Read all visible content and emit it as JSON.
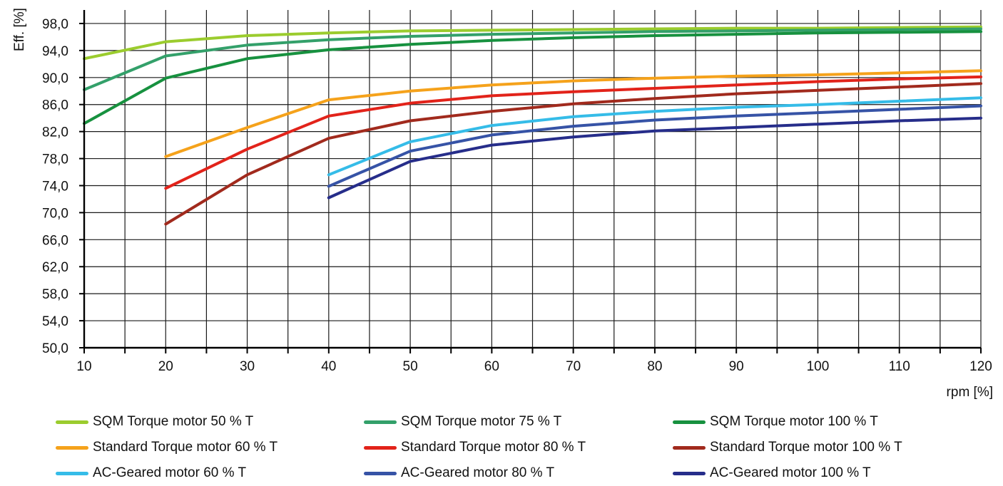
{
  "chart_data": {
    "type": "line",
    "title": "",
    "xlabel": "rpm [%]",
    "ylabel": "Eff. [%]",
    "xlim": [
      10,
      120
    ],
    "ylim": [
      50,
      100
    ],
    "xticks": [
      10,
      20,
      30,
      40,
      50,
      60,
      70,
      80,
      90,
      100,
      110,
      120
    ],
    "xtick_labels": [
      "10",
      "20",
      "30",
      "40",
      "50",
      "60",
      "70",
      "80",
      "90",
      "100",
      "110",
      "120"
    ],
    "yticks": [
      50,
      54,
      58,
      62,
      66,
      70,
      74,
      78,
      82,
      86,
      90,
      94,
      98
    ],
    "ytick_labels": [
      "50,0",
      "54,0",
      "58,0",
      "62,0",
      "66,0",
      "70,0",
      "74,0",
      "78,0",
      "82,0",
      "86,0",
      "90,0",
      "94,0",
      "98,0"
    ],
    "grid": true,
    "legend_position": "bottom",
    "series": [
      {
        "name": "SQM Torque motor  50 % T",
        "color": "#9bcc2e",
        "x": [
          10,
          20,
          30,
          40,
          50,
          60,
          70,
          80,
          90,
          100,
          110,
          120
        ],
        "y": [
          92.8,
          95.3,
          96.2,
          96.6,
          96.9,
          97.0,
          97.1,
          97.2,
          97.3,
          97.3,
          97.4,
          97.5
        ]
      },
      {
        "name": "SQM Torque motor  75 % T",
        "color": "#33a06a",
        "x": [
          10,
          20,
          30,
          40,
          50,
          60,
          70,
          80,
          90,
          100,
          110,
          120
        ],
        "y": [
          88.2,
          93.2,
          94.8,
          95.6,
          96.1,
          96.4,
          96.6,
          96.8,
          96.9,
          97.0,
          97.1,
          97.2
        ]
      },
      {
        "name": "SQM Torque motor  100 % T",
        "color": "#17913f",
        "x": [
          10,
          20,
          30,
          40,
          50,
          60,
          70,
          80,
          90,
          100,
          110,
          120
        ],
        "y": [
          83.2,
          89.9,
          92.8,
          94.1,
          94.9,
          95.5,
          95.9,
          96.2,
          96.4,
          96.6,
          96.7,
          96.8
        ]
      },
      {
        "name": "Standard Torque motor  60 % T",
        "color": "#f5a21b",
        "x": [
          20,
          30,
          40,
          50,
          60,
          70,
          80,
          90,
          100,
          110,
          120
        ],
        "y": [
          78.3,
          82.6,
          86.7,
          88.0,
          88.9,
          89.5,
          89.9,
          90.2,
          90.4,
          90.7,
          91.0
        ]
      },
      {
        "name": "Standard Torque motor  80 % T",
        "color": "#e2231a",
        "x": [
          20,
          30,
          40,
          50,
          60,
          70,
          80,
          90,
          100,
          110,
          120
        ],
        "y": [
          73.6,
          79.4,
          84.3,
          86.2,
          87.3,
          87.9,
          88.4,
          88.9,
          89.4,
          89.8,
          90.1
        ]
      },
      {
        "name": "Standard Torque motor  100 % T",
        "color": "#a12a1d",
        "x": [
          20,
          30,
          40,
          50,
          60,
          70,
          80,
          90,
          100,
          110,
          120
        ],
        "y": [
          68.3,
          75.6,
          81.0,
          83.6,
          85.0,
          86.1,
          86.9,
          87.6,
          88.1,
          88.6,
          89.1
        ]
      },
      {
        "name": "AC-Geared motor 60 % T",
        "color": "#35bce8",
        "x": [
          40,
          50,
          60,
          70,
          80,
          90,
          100,
          110,
          120
        ],
        "y": [
          75.6,
          80.5,
          82.9,
          84.2,
          85.0,
          85.6,
          86.0,
          86.5,
          87.0
        ]
      },
      {
        "name": "AC-Geared motor 80 % T",
        "color": "#3653a6",
        "x": [
          40,
          50,
          60,
          70,
          80,
          90,
          100,
          110,
          120
        ],
        "y": [
          73.9,
          79.1,
          81.5,
          82.8,
          83.7,
          84.3,
          84.8,
          85.3,
          85.8
        ]
      },
      {
        "name": "AC-Geared motor 100 % T",
        "color": "#262d8a",
        "x": [
          40,
          50,
          60,
          70,
          80,
          90,
          100,
          110,
          120
        ],
        "y": [
          72.2,
          77.6,
          80.0,
          81.2,
          82.1,
          82.6,
          83.1,
          83.6,
          84.0
        ]
      }
    ]
  }
}
